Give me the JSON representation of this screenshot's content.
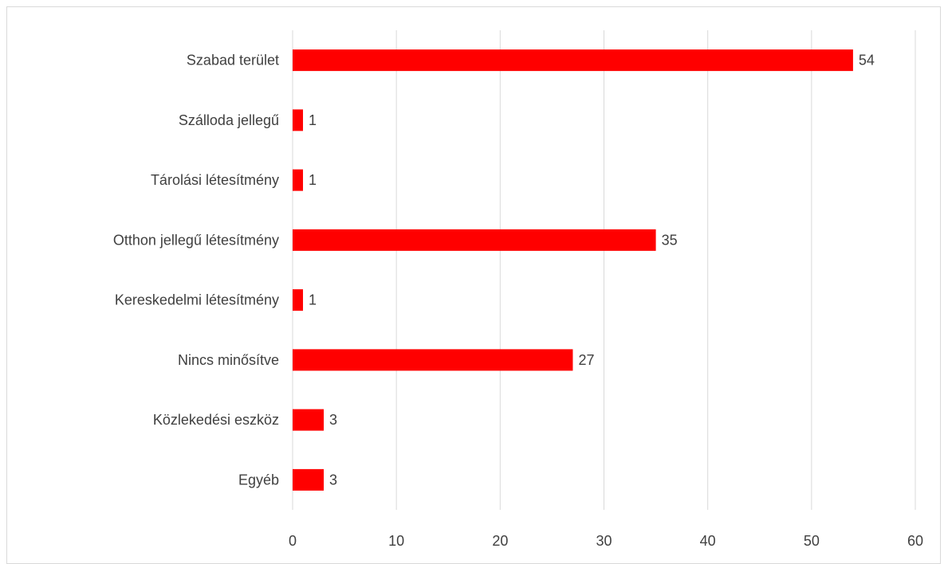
{
  "chart_data": {
    "type": "bar",
    "orientation": "horizontal",
    "categories": [
      "Szabad terület",
      "Szálloda jellegű",
      "Tárolási létesítmény",
      "Otthon jellegű létesítmény",
      "Kereskedelmi létesítmény",
      "Nincs minősítve",
      "Közlekedési eszköz",
      "Egyéb"
    ],
    "values": [
      54,
      1,
      1,
      35,
      1,
      27,
      3,
      3
    ],
    "value_labels": [
      "54",
      "1",
      "1",
      "35",
      "1",
      "27",
      "3",
      "3"
    ],
    "xlim": [
      0,
      60
    ],
    "x_ticks": [
      "0",
      "10",
      "20",
      "30",
      "40",
      "50",
      "60"
    ],
    "grid": "vertical",
    "legend": "none",
    "bar_color": "#ff0000",
    "title": "",
    "xlabel": "",
    "ylabel": ""
  }
}
